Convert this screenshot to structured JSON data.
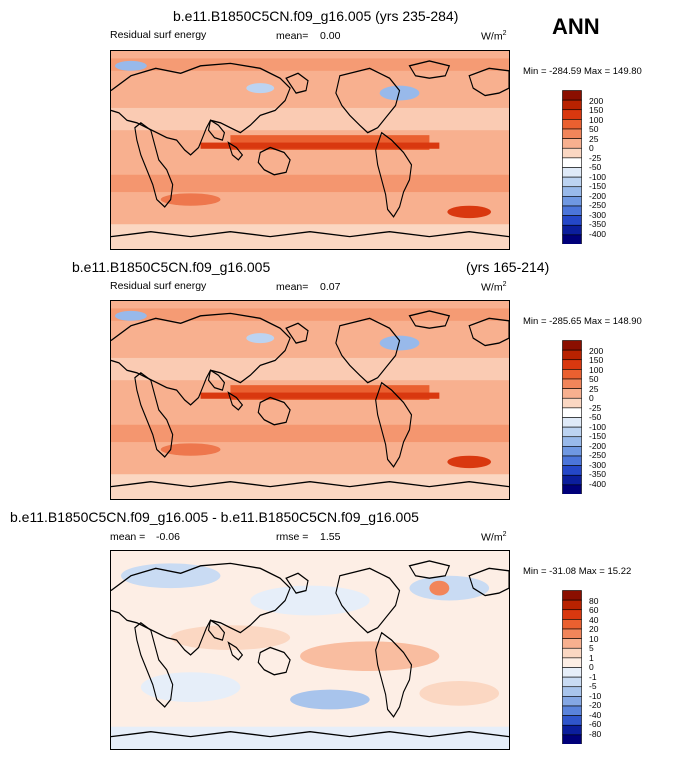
{
  "season": "ANN",
  "units_label": "W/m",
  "units_sup": "2",
  "panels": [
    {
      "title": "b.e11.B1850C5CN.f09_g16.005 (yrs 235-284)",
      "title_right": "",
      "variable": "Residual surf energy",
      "mean_label": "mean=",
      "mean_value": "0.00",
      "rmse_label": "",
      "rmse_value": "",
      "minmax": "Min = -284.59 Max = 149.80",
      "colorbar": [
        "200",
        "150",
        "100",
        "50",
        "25",
        "0",
        "-25",
        "-50",
        "-100",
        "-150",
        "-200",
        "-250",
        "-300",
        "-350",
        "-400"
      ]
    },
    {
      "title": "b.e11.B1850C5CN.f09_g16.005",
      "title_right": "(yrs 165-214)",
      "variable": "Residual surf energy",
      "mean_label": "mean=",
      "mean_value": "0.07",
      "rmse_label": "",
      "rmse_value": "",
      "minmax": "Min = -285.65 Max = 148.90",
      "colorbar": [
        "200",
        "150",
        "100",
        "50",
        "25",
        "0",
        "-25",
        "-50",
        "-100",
        "-150",
        "-200",
        "-250",
        "-300",
        "-350",
        "-400"
      ]
    },
    {
      "title": "b.e11.B1850C5CN.f09_g16.005 - b.e11.B1850C5CN.f09_g16.005",
      "title_right": "",
      "variable": "",
      "mean_label": "mean = ",
      "mean_value": "-0.06",
      "rmse_label": "rmse =",
      "rmse_value": "1.55",
      "minmax": "Min = -31.08 Max = 15.22",
      "colorbar": [
        "80",
        "60",
        "40",
        "20",
        "10",
        "5",
        "1",
        "0",
        "-1",
        "-5",
        "-10",
        "-20",
        "-40",
        "-60",
        "-80"
      ]
    }
  ],
  "colors": {
    "bar_abs": [
      "#8b0f00",
      "#b82200",
      "#d9380f",
      "#ea6030",
      "#f2855a",
      "#f8b08f",
      "#fbd7c2",
      "#ffffff",
      "#dfeaf8",
      "#bcd3f1",
      "#98b9ea",
      "#6f98e2",
      "#4b75da",
      "#2447c8",
      "#0b1e9c",
      "#00007a"
    ],
    "bar_diff": [
      "#8b0f00",
      "#b82200",
      "#d9380f",
      "#ea6030",
      "#f2855a",
      "#f8b08f",
      "#fbd7c2",
      "#fdeee5",
      "#e6eef9",
      "#c9dbf3",
      "#a8c4ec",
      "#84a7e4",
      "#5a83db",
      "#2f55cb",
      "#0b1e9c",
      "#00007a"
    ]
  }
}
